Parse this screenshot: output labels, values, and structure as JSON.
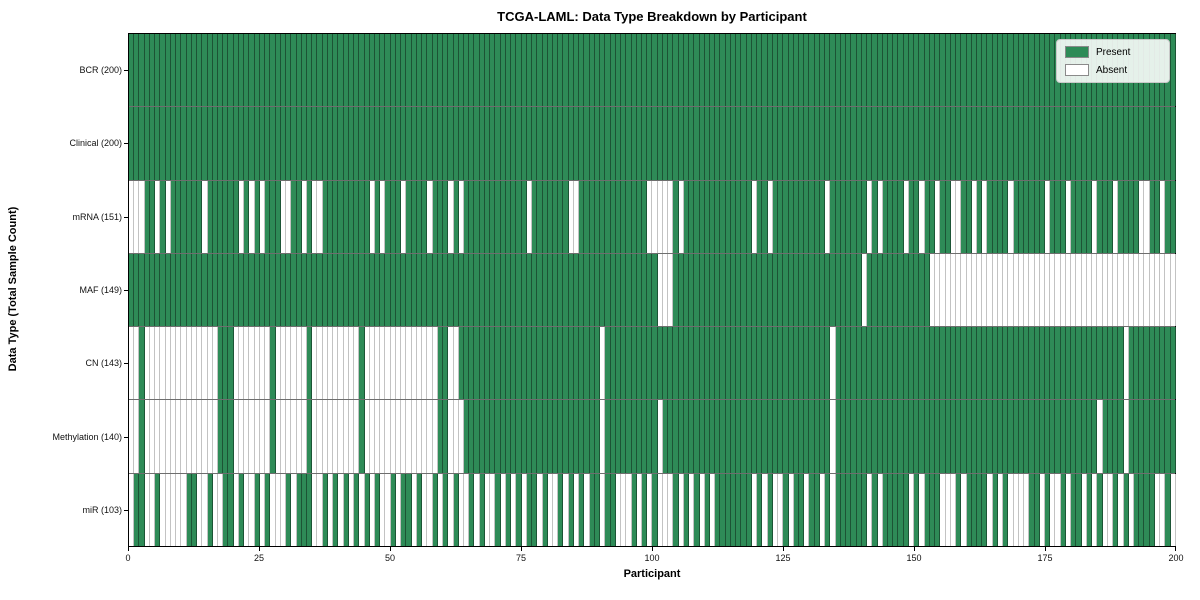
{
  "chart_data": {
    "type": "heatmap",
    "title": "TCGA-LAML: Data Type Breakdown by Participant",
    "xlabel": "Participant",
    "ylabel": "Data Type (Total Sample Count)",
    "n_participants": 200,
    "x_ticks": [
      0,
      25,
      50,
      75,
      100,
      125,
      150,
      175,
      200
    ],
    "x_range": [
      0,
      200
    ],
    "grid": "row-separators",
    "legend_position": "upper-right",
    "legend": [
      {
        "label": "Present",
        "color": "#2e8b57"
      },
      {
        "label": "Absent",
        "color": "#ffffff"
      }
    ],
    "rows": [
      {
        "label": "BCR (200)",
        "name": "BCR",
        "present_count": 200,
        "absent_cols": []
      },
      {
        "label": "Clinical (200)",
        "name": "Clinical",
        "present_count": 200,
        "absent_cols": []
      },
      {
        "label": "mRNA (151)",
        "name": "mRNA",
        "present_count": 151,
        "absent_cols": [
          0,
          1,
          2,
          5,
          7,
          14,
          21,
          23,
          25,
          29,
          30,
          33,
          35,
          36,
          46,
          48,
          52,
          57,
          61,
          63,
          76,
          84,
          85,
          99,
          100,
          101,
          102,
          103,
          105,
          119,
          122,
          133,
          141,
          143,
          148,
          151,
          154,
          157,
          158,
          161,
          163,
          168,
          175,
          179,
          184,
          188,
          193,
          194,
          197
        ]
      },
      {
        "label": "MAF (149)",
        "name": "MAF",
        "present_count": 149,
        "absent_cols": [
          101,
          102,
          103,
          140,
          153,
          154,
          155,
          156,
          157,
          158,
          159,
          160,
          161,
          162,
          163,
          164,
          165,
          166,
          167,
          168,
          169,
          170,
          171,
          172,
          173,
          174,
          175,
          176,
          177,
          178,
          179,
          180,
          181,
          182,
          183,
          184,
          185,
          186,
          187,
          188,
          189,
          190,
          191,
          192,
          193,
          194,
          195,
          196,
          197,
          198,
          199
        ]
      },
      {
        "label": "CN (143)",
        "name": "CN",
        "present_count": 143,
        "absent_cols": [
          0,
          1,
          3,
          4,
          5,
          6,
          7,
          8,
          9,
          10,
          11,
          12,
          13,
          14,
          15,
          16,
          20,
          21,
          22,
          23,
          24,
          25,
          26,
          28,
          29,
          30,
          31,
          32,
          33,
          35,
          36,
          37,
          38,
          39,
          40,
          41,
          42,
          43,
          45,
          46,
          47,
          48,
          49,
          50,
          51,
          52,
          53,
          54,
          55,
          56,
          57,
          58,
          61,
          62,
          90,
          134,
          190
        ]
      },
      {
        "label": "Methylation (140)",
        "name": "Methylation",
        "present_count": 140,
        "absent_cols": [
          0,
          1,
          3,
          4,
          5,
          6,
          7,
          8,
          9,
          10,
          11,
          12,
          13,
          14,
          15,
          16,
          20,
          21,
          22,
          23,
          24,
          25,
          26,
          28,
          29,
          30,
          31,
          32,
          33,
          35,
          36,
          37,
          38,
          39,
          40,
          41,
          42,
          43,
          45,
          46,
          47,
          48,
          49,
          50,
          51,
          52,
          53,
          54,
          55,
          56,
          57,
          58,
          61,
          62,
          63,
          90,
          101,
          134,
          185,
          190
        ]
      },
      {
        "label": "miR (103)",
        "name": "miR",
        "present_count": 103,
        "absent_cols": [
          0,
          3,
          4,
          6,
          7,
          8,
          9,
          10,
          13,
          14,
          16,
          17,
          20,
          22,
          23,
          25,
          27,
          28,
          29,
          31,
          35,
          36,
          38,
          40,
          42,
          44,
          46,
          48,
          49,
          51,
          54,
          56,
          57,
          59,
          61,
          63,
          64,
          66,
          68,
          69,
          71,
          73,
          75,
          78,
          80,
          81,
          83,
          85,
          87,
          90,
          93,
          94,
          95,
          97,
          99,
          101,
          102,
          103,
          105,
          107,
          109,
          111,
          119,
          121,
          123,
          124,
          126,
          129,
          132,
          134,
          141,
          143,
          149,
          151,
          155,
          156,
          157,
          159,
          164,
          166,
          168,
          169,
          170,
          171,
          174,
          176,
          177,
          179,
          182,
          184,
          186,
          187,
          189,
          191,
          196,
          197,
          199
        ]
      }
    ]
  }
}
